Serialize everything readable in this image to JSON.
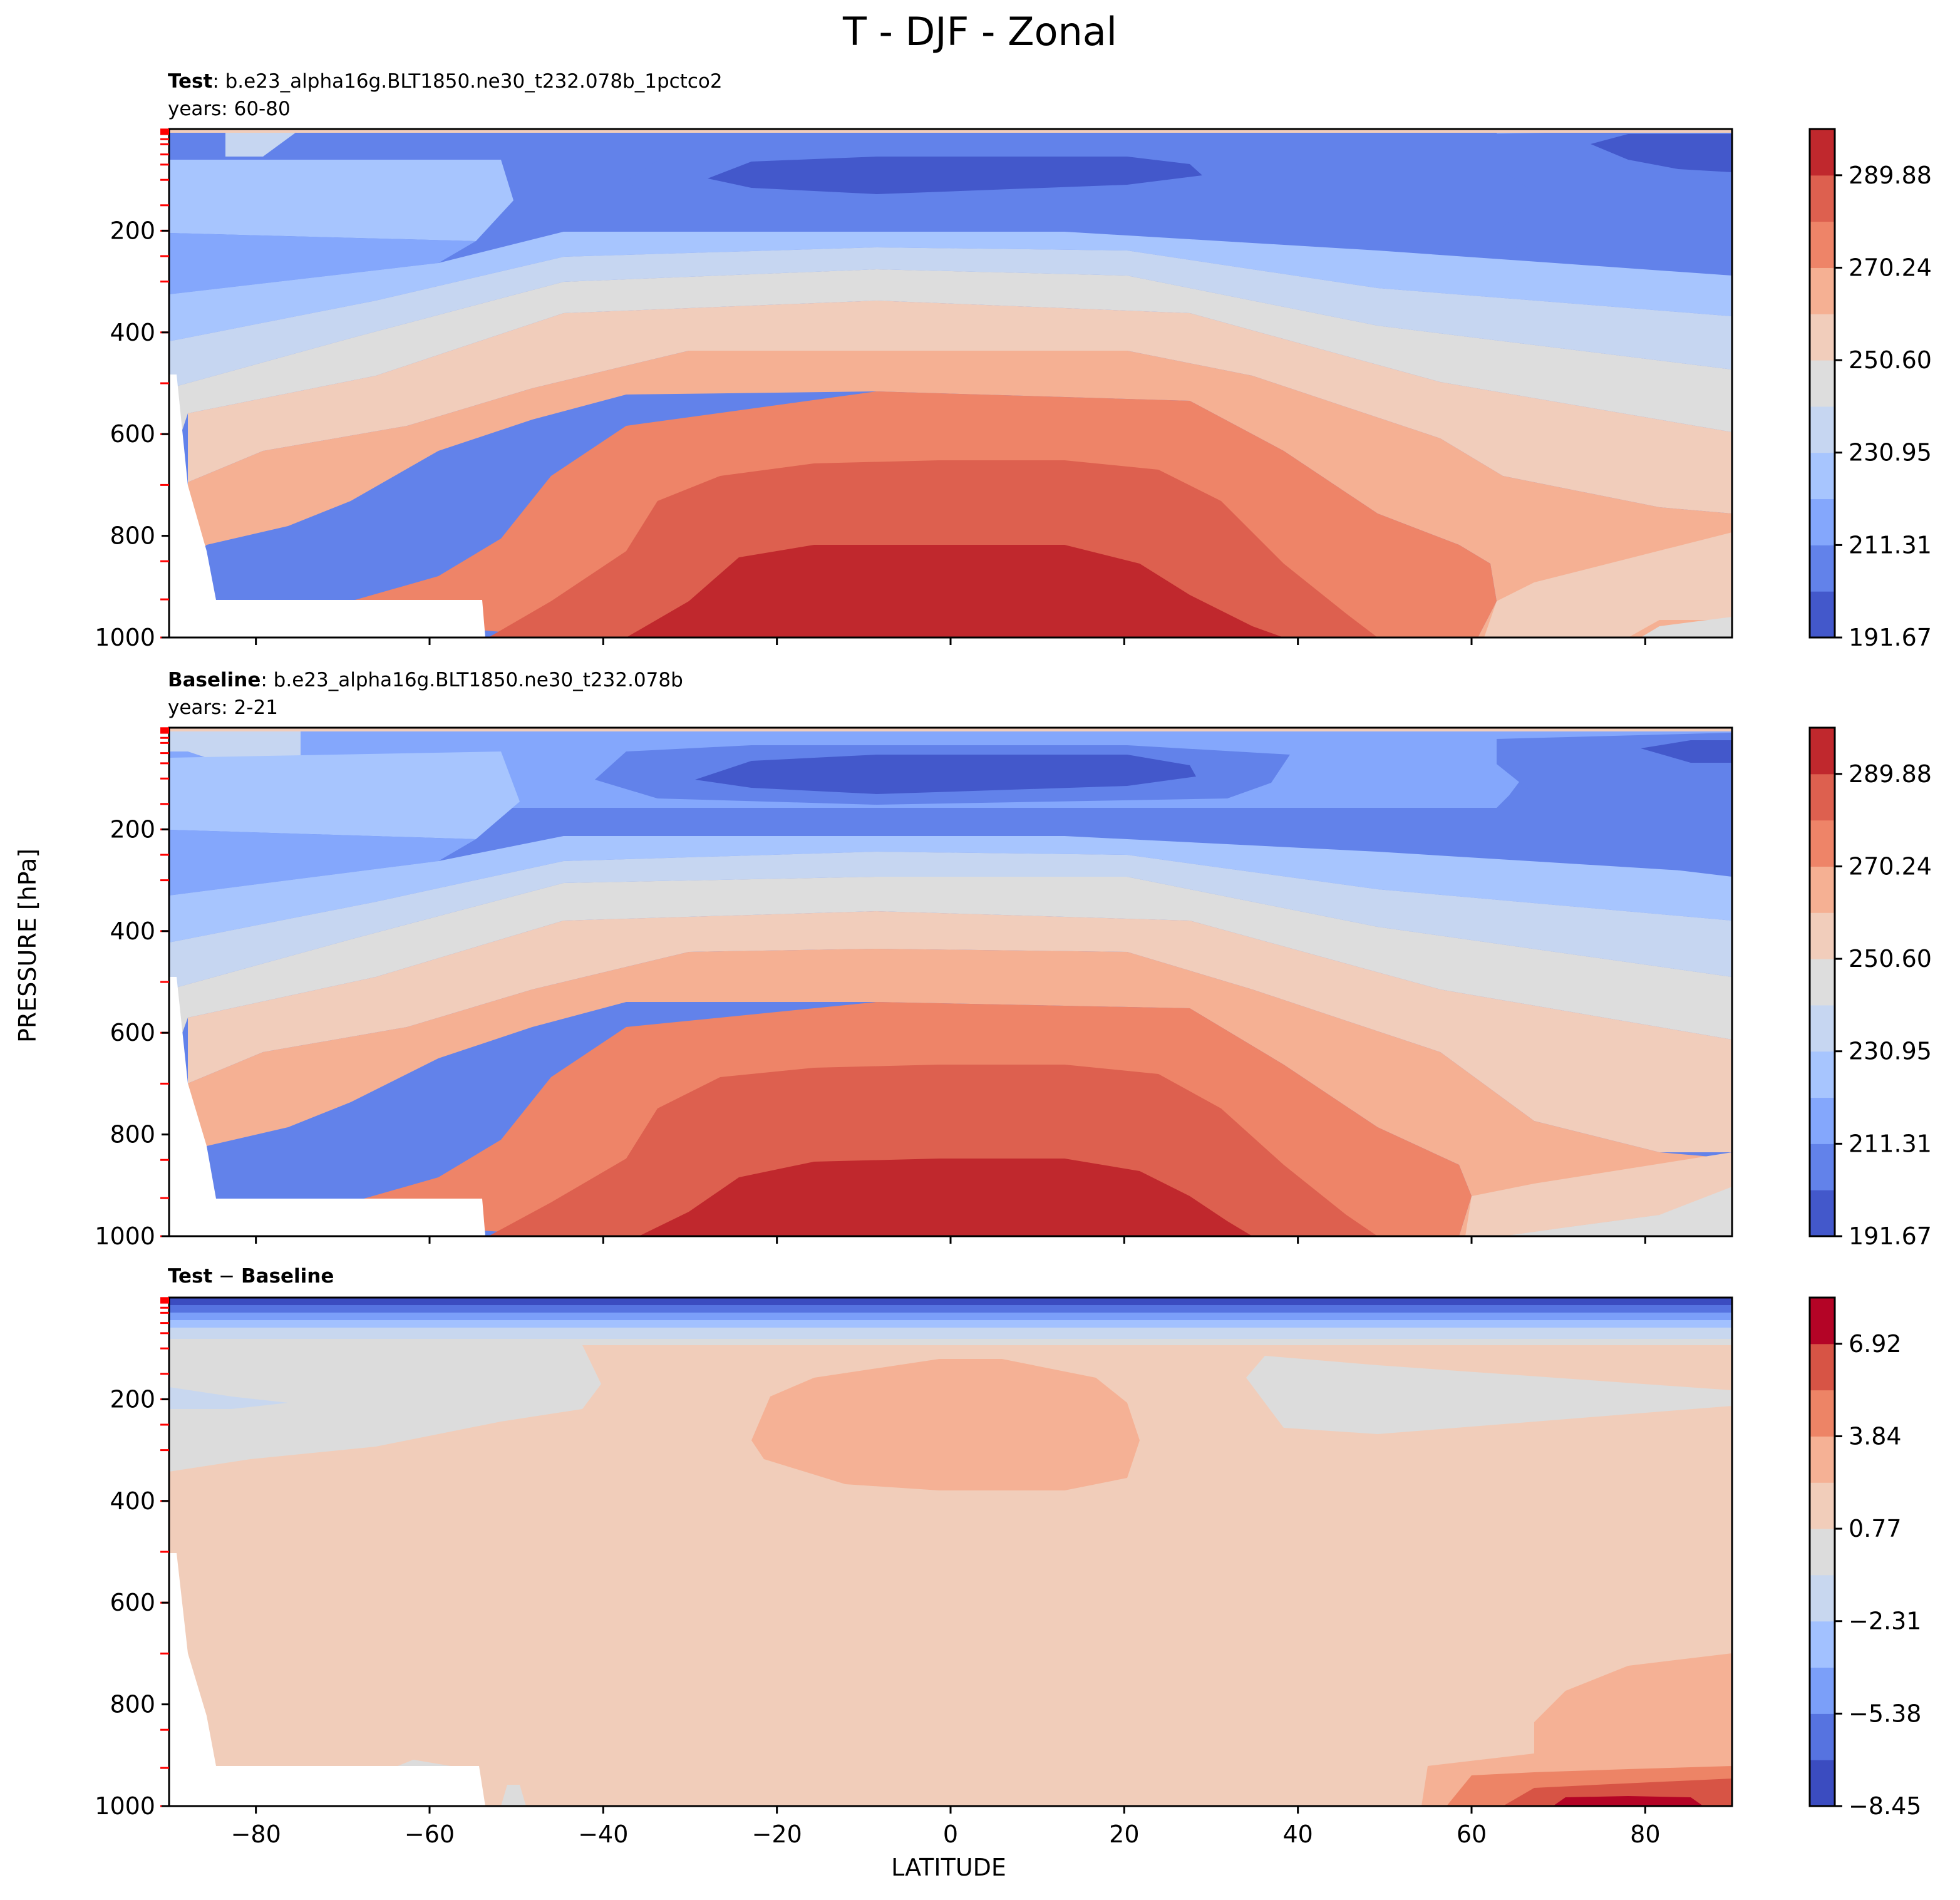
{
  "figure": {
    "title": "T - DJF - Zonal",
    "xlabel": "LATITUDE",
    "ylabel": "PRESSURE [hPa]"
  },
  "colors": {
    "abs_levels": [
      "#4358cb",
      "#6282ea",
      "#84a7fc",
      "#a7c5fe",
      "#c6d6f1",
      "#dddddd",
      "#f1cdbb",
      "#f5b093",
      "#ee8468",
      "#dd604f",
      "#c0282d"
    ],
    "diff_levels": [
      "#3b4cc0",
      "#5673e0",
      "#7b9ff9",
      "#a2c1ff",
      "#c8d7ef",
      "#dcdcdc",
      "#f1cdba",
      "#f5b195",
      "#ed8466",
      "#d75445",
      "#b40426"
    ],
    "mask": "#ffffff",
    "tick_marks_left": "#ff0000"
  },
  "panels": [
    {
      "id": "test",
      "title_bold": "Test",
      "title_rest": ": b.e23_alpha16g.BLT1850.ne30_t232.078b_1pctco2",
      "subtitle": "years: 60-80",
      "colorbar_ticks": [
        "191.67",
        "211.31",
        "230.95",
        "250.60",
        "270.24",
        "289.88"
      ]
    },
    {
      "id": "baseline",
      "title_bold": "Baseline",
      "title_rest": ": b.e23_alpha16g.BLT1850.ne30_t232.078b",
      "subtitle": "years: 2-21",
      "colorbar_ticks": [
        "191.67",
        "211.31",
        "230.95",
        "250.60",
        "270.24",
        "289.88"
      ]
    },
    {
      "id": "diff",
      "title_bold": "Test",
      "title_mid": " − ",
      "title_bold2": "Baseline",
      "subtitle": "",
      "colorbar_ticks": [
        "−8.45",
        "−5.38",
        "−2.31",
        "0.77",
        "3.84",
        "6.92"
      ]
    }
  ],
  "chart_data": [
    {
      "type": "contour",
      "title": "Test: b.e23_alpha16g.BLT1850.ne30_t232.078b_1pctco2",
      "subtitle": "years: 60-80",
      "xlabel": "LATITUDE",
      "ylabel": "PRESSURE [hPa]",
      "xlim": [
        -90,
        90
      ],
      "ylim": [
        1000,
        0
      ],
      "x_ticks": [
        -80,
        -60,
        -40,
        -20,
        0,
        20,
        40,
        60,
        80
      ],
      "y_ticks": [
        200,
        400,
        600,
        800,
        1000
      ],
      "colorbar_ticks": [
        191.67,
        211.31,
        230.95,
        250.6,
        270.24,
        289.88
      ],
      "levels_count": 11,
      "approx_values": {
        "surface_equator_K": 296,
        "tropopause_equator_K": 195,
        "surface_south_pole_K": 255,
        "surface_north_pole_K": 250
      }
    },
    {
      "type": "contour",
      "title": "Baseline: b.e23_alpha16g.BLT1850.ne30_t232.078b",
      "subtitle": "years: 2-21",
      "xlabel": "LATITUDE",
      "ylabel": "PRESSURE [hPa]",
      "xlim": [
        -90,
        90
      ],
      "ylim": [
        1000,
        0
      ],
      "x_ticks": [
        -80,
        -60,
        -40,
        -20,
        0,
        20,
        40,
        60,
        80
      ],
      "y_ticks": [
        200,
        400,
        600,
        800,
        1000
      ],
      "colorbar_ticks": [
        191.67,
        211.31,
        230.95,
        250.6,
        270.24,
        289.88
      ],
      "levels_count": 11,
      "approx_values": {
        "surface_equator_K": 294,
        "tropopause_equator_K": 196,
        "surface_south_pole_K": 254,
        "surface_north_pole_K": 246
      }
    },
    {
      "type": "contour",
      "title": "Test − Baseline",
      "xlabel": "LATITUDE",
      "ylabel": "PRESSURE [hPa]",
      "xlim": [
        -90,
        90
      ],
      "ylim": [
        1000,
        0
      ],
      "x_ticks": [
        -80,
        -60,
        -40,
        -20,
        0,
        20,
        40,
        60,
        80
      ],
      "y_ticks": [
        200,
        400,
        600,
        800,
        1000
      ],
      "colorbar_ticks": [
        -8.45,
        -5.38,
        -2.31,
        0.77,
        3.84,
        6.92
      ],
      "levels_count": 11,
      "approx_values": {
        "troposphere_K": 2.5,
        "upper_trop_tropics_K": 3.5,
        "arctic_surface_K": 7.5,
        "stratosphere_top_K": -8
      }
    }
  ]
}
